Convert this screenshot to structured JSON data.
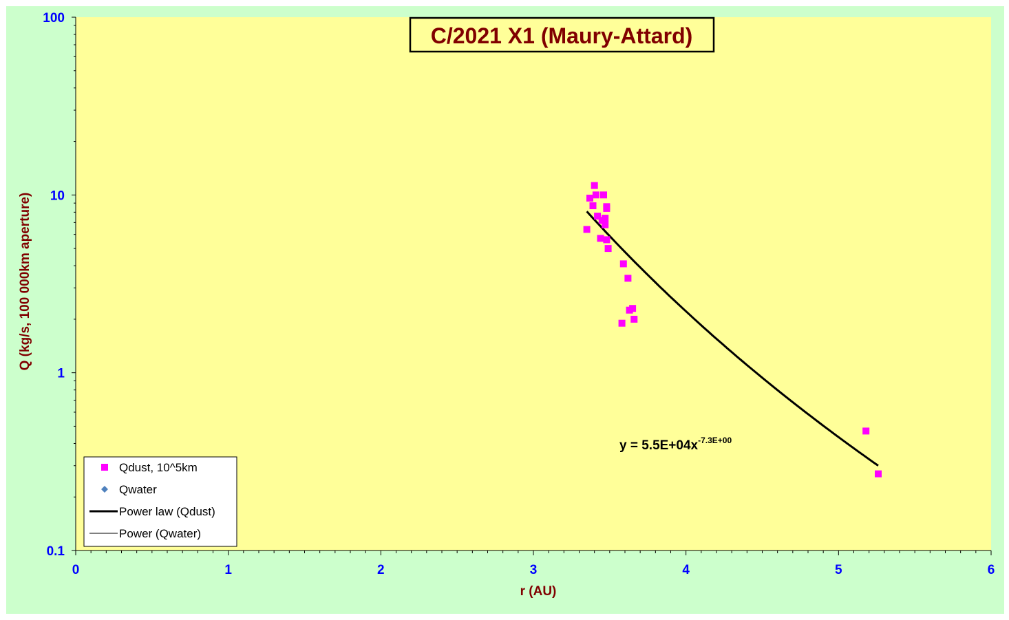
{
  "chart_data": {
    "type": "scatter",
    "title": "C/2021 X1 (Maury-Attard)",
    "xlabel": "r (AU)",
    "ylabel": "Q (kg/s, 100 000km aperture)",
    "xlim": [
      0,
      6
    ],
    "ylim": [
      0.1,
      100
    ],
    "yscale": "log",
    "x_ticks": [
      "0",
      "1",
      "2",
      "3",
      "4",
      "5",
      "6"
    ],
    "y_ticks": [
      "0.1",
      "1",
      "10",
      "100"
    ],
    "grid": false,
    "legend_position": "bottom-left",
    "series": [
      {
        "name": "Qdust, 10^5km",
        "marker": "square",
        "color": "#ff00ff",
        "points": [
          {
            "x": 3.35,
            "y": 6.4
          },
          {
            "x": 3.37,
            "y": 9.6
          },
          {
            "x": 3.39,
            "y": 8.7
          },
          {
            "x": 3.4,
            "y": 11.3
          },
          {
            "x": 3.41,
            "y": 10.0
          },
          {
            "x": 3.42,
            "y": 7.6
          },
          {
            "x": 3.44,
            "y": 5.7
          },
          {
            "x": 3.45,
            "y": 7.2
          },
          {
            "x": 3.46,
            "y": 10.0
          },
          {
            "x": 3.47,
            "y": 6.8
          },
          {
            "x": 3.47,
            "y": 7.4
          },
          {
            "x": 3.48,
            "y": 8.6
          },
          {
            "x": 3.48,
            "y": 8.4
          },
          {
            "x": 3.48,
            "y": 5.6
          },
          {
            "x": 3.49,
            "y": 5.0
          },
          {
            "x": 3.58,
            "y": 1.9
          },
          {
            "x": 3.59,
            "y": 4.1
          },
          {
            "x": 3.62,
            "y": 3.4
          },
          {
            "x": 3.63,
            "y": 2.25
          },
          {
            "x": 3.65,
            "y": 2.3
          },
          {
            "x": 3.66,
            "y": 2.0
          },
          {
            "x": 5.18,
            "y": 0.47
          },
          {
            "x": 5.26,
            "y": 0.27
          }
        ]
      },
      {
        "name": "Qwater",
        "marker": "diamond",
        "color": "#4f81bd",
        "points": []
      }
    ],
    "trendlines": [
      {
        "name": "Power law (Qdust)",
        "type": "power",
        "a": 55000,
        "b": -7.3,
        "x_range": [
          3.35,
          5.26
        ],
        "color": "#000000",
        "width": 3
      },
      {
        "name": "Power (Qwater)",
        "type": "power",
        "color": "#000000",
        "width": 1
      }
    ],
    "annotation": {
      "prefix": "y = 5.5E+04x",
      "exponent": "-7.3E+00"
    }
  },
  "colors": {
    "outer_background": "#ccffcc",
    "plot_background": "#ffff99",
    "axis_text": "#0000ff",
    "label_text": "#800000",
    "title_text": "#800000"
  }
}
